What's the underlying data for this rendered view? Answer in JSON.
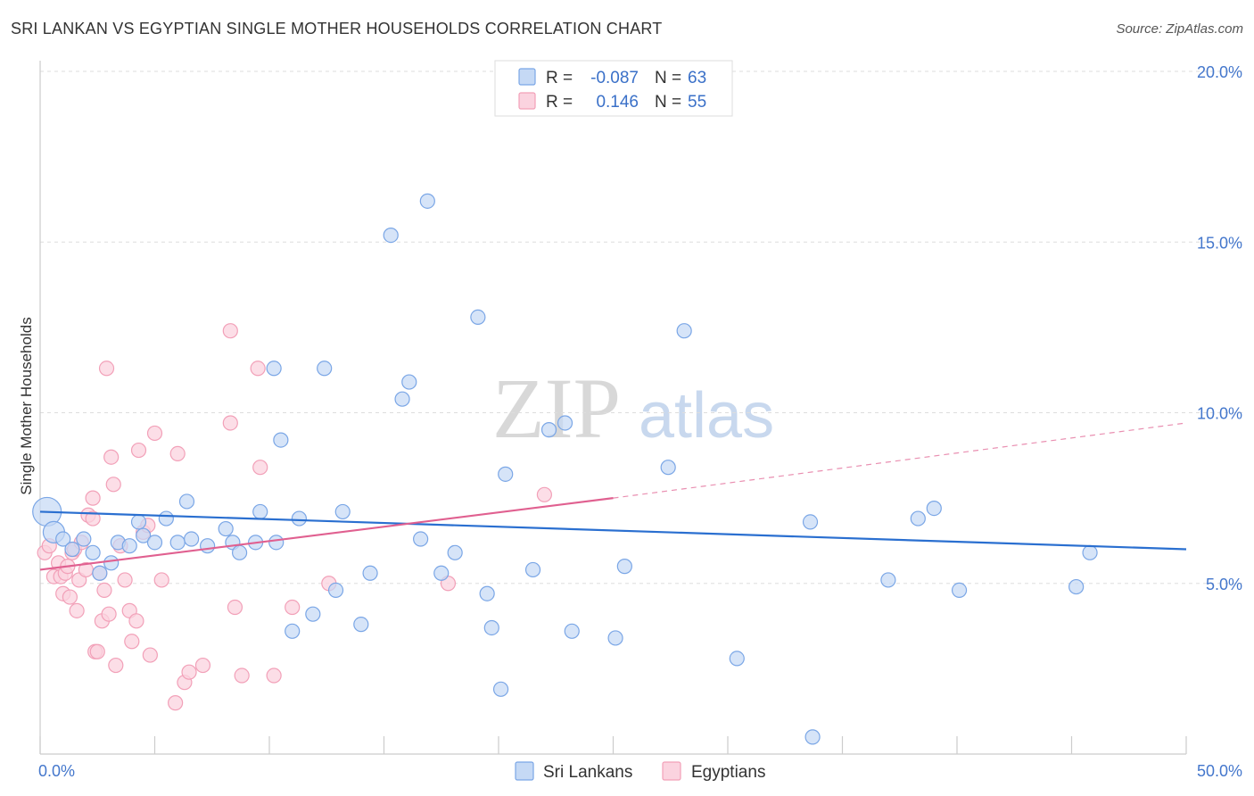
{
  "header": {
    "title": "SRI LANKAN VS EGYPTIAN SINGLE MOTHER HOUSEHOLDS CORRELATION CHART",
    "source": "Source: ZipAtlas.com"
  },
  "watermark": {
    "zip": "ZIP",
    "atlas": "atlas"
  },
  "legend_top": {
    "rows": [
      {
        "r_label": "R =",
        "r_value": "-0.087",
        "n_label": "N =",
        "n_value": "63",
        "color": "#7aa6e6"
      },
      {
        "r_label": "R =",
        "r_value": "0.146",
        "n_label": "N =",
        "n_value": "55",
        "color": "#f2a0b8"
      }
    ]
  },
  "legend_bottom": {
    "items": [
      {
        "label": "Sri Lankans",
        "color": "#7aa6e6"
      },
      {
        "label": "Egyptians",
        "color": "#f2a0b8"
      }
    ]
  },
  "chart_data": {
    "type": "scatter",
    "title": "SRI LANKAN VS EGYPTIAN SINGLE MOTHER HOUSEHOLDS CORRELATION CHART",
    "xlabel": "",
    "ylabel": "Single Mother Households",
    "xlim": [
      0,
      50
    ],
    "ylim": [
      0,
      20
    ],
    "x_tick_labels": [
      "0.0%",
      "50.0%"
    ],
    "y_ticks": [
      5,
      10,
      15,
      20
    ],
    "y_tick_labels": [
      "5.0%",
      "10.0%",
      "15.0%",
      "20.0%"
    ],
    "grid": true,
    "legend_position": "top-center",
    "series": [
      {
        "name": "Sri Lankans",
        "color": "#7aa6e6",
        "line_color": "#2a6fd0",
        "trend": {
          "x": [
            0,
            50
          ],
          "y": [
            7.1,
            6.0
          ]
        },
        "points": [
          [
            0.3,
            7.1
          ],
          [
            0.6,
            6.5
          ],
          [
            1.0,
            6.3
          ],
          [
            1.4,
            6.0
          ],
          [
            1.9,
            6.3
          ],
          [
            2.3,
            5.9
          ],
          [
            2.6,
            5.3
          ],
          [
            3.1,
            5.6
          ],
          [
            3.4,
            6.2
          ],
          [
            3.9,
            6.1
          ],
          [
            4.3,
            6.8
          ],
          [
            4.5,
            6.4
          ],
          [
            5.0,
            6.2
          ],
          [
            5.5,
            6.9
          ],
          [
            6.0,
            6.2
          ],
          [
            6.4,
            7.4
          ],
          [
            6.6,
            6.3
          ],
          [
            7.3,
            6.1
          ],
          [
            8.1,
            6.6
          ],
          [
            8.4,
            6.2
          ],
          [
            8.7,
            5.9
          ],
          [
            9.6,
            7.1
          ],
          [
            9.4,
            6.2
          ],
          [
            10.2,
            11.3
          ],
          [
            10.5,
            9.2
          ],
          [
            10.3,
            6.2
          ],
          [
            11.0,
            3.6
          ],
          [
            11.3,
            6.9
          ],
          [
            11.9,
            4.1
          ],
          [
            12.4,
            11.3
          ],
          [
            12.9,
            4.8
          ],
          [
            13.2,
            7.1
          ],
          [
            14.0,
            3.8
          ],
          [
            14.4,
            5.3
          ],
          [
            15.3,
            15.2
          ],
          [
            15.8,
            10.4
          ],
          [
            16.1,
            10.9
          ],
          [
            16.6,
            6.3
          ],
          [
            16.9,
            16.2
          ],
          [
            17.5,
            5.3
          ],
          [
            18.1,
            5.9
          ],
          [
            19.1,
            12.8
          ],
          [
            19.5,
            4.7
          ],
          [
            19.7,
            3.7
          ],
          [
            20.1,
            1.9
          ],
          [
            20.3,
            8.2
          ],
          [
            21.5,
            5.4
          ],
          [
            22.2,
            9.5
          ],
          [
            22.9,
            9.7
          ],
          [
            23.2,
            3.6
          ],
          [
            25.1,
            3.4
          ],
          [
            25.5,
            5.5
          ],
          [
            27.4,
            8.4
          ],
          [
            28.1,
            12.4
          ],
          [
            30.4,
            2.8
          ],
          [
            33.6,
            6.8
          ],
          [
            33.7,
            0.5
          ],
          [
            37.0,
            5.1
          ],
          [
            38.3,
            6.9
          ],
          [
            39.0,
            7.2
          ],
          [
            40.1,
            4.8
          ],
          [
            45.2,
            4.9
          ],
          [
            45.8,
            5.9
          ]
        ]
      },
      {
        "name": "Egyptians",
        "color": "#f2a0b8",
        "line_color": "#e06090",
        "trend": {
          "x": [
            0,
            25
          ],
          "y": [
            5.4,
            7.5
          ]
        },
        "trend_extension": {
          "x": [
            25,
            50
          ],
          "y": [
            7.5,
            9.7
          ]
        },
        "points": [
          [
            0.2,
            5.9
          ],
          [
            0.4,
            6.1
          ],
          [
            0.6,
            5.2
          ],
          [
            0.8,
            5.6
          ],
          [
            0.9,
            5.2
          ],
          [
            1.0,
            4.7
          ],
          [
            1.1,
            5.3
          ],
          [
            1.2,
            5.5
          ],
          [
            1.3,
            4.6
          ],
          [
            1.4,
            5.9
          ],
          [
            1.5,
            6.0
          ],
          [
            1.6,
            4.2
          ],
          [
            1.7,
            5.1
          ],
          [
            1.8,
            6.2
          ],
          [
            2.0,
            5.4
          ],
          [
            2.1,
            7.0
          ],
          [
            2.3,
            6.9
          ],
          [
            2.3,
            7.5
          ],
          [
            2.4,
            3.0
          ],
          [
            2.5,
            3.0
          ],
          [
            2.6,
            5.3
          ],
          [
            2.7,
            3.9
          ],
          [
            2.8,
            4.8
          ],
          [
            2.9,
            11.3
          ],
          [
            3.0,
            4.1
          ],
          [
            3.1,
            8.7
          ],
          [
            3.2,
            7.9
          ],
          [
            3.3,
            2.6
          ],
          [
            3.5,
            6.1
          ],
          [
            3.7,
            5.1
          ],
          [
            3.9,
            4.2
          ],
          [
            4.0,
            3.3
          ],
          [
            4.2,
            3.9
          ],
          [
            4.3,
            8.9
          ],
          [
            4.5,
            6.5
          ],
          [
            4.7,
            6.7
          ],
          [
            4.8,
            2.9
          ],
          [
            5.0,
            9.4
          ],
          [
            5.3,
            5.1
          ],
          [
            5.9,
            1.5
          ],
          [
            6.0,
            8.8
          ],
          [
            6.3,
            2.1
          ],
          [
            6.5,
            2.4
          ],
          [
            7.1,
            2.6
          ],
          [
            8.3,
            12.4
          ],
          [
            8.3,
            9.7
          ],
          [
            8.5,
            4.3
          ],
          [
            8.8,
            2.3
          ],
          [
            9.5,
            11.3
          ],
          [
            9.6,
            8.4
          ],
          [
            10.2,
            2.3
          ],
          [
            11.0,
            4.3
          ],
          [
            12.6,
            5.0
          ],
          [
            17.8,
            5.0
          ],
          [
            22.0,
            7.6
          ]
        ]
      }
    ]
  }
}
